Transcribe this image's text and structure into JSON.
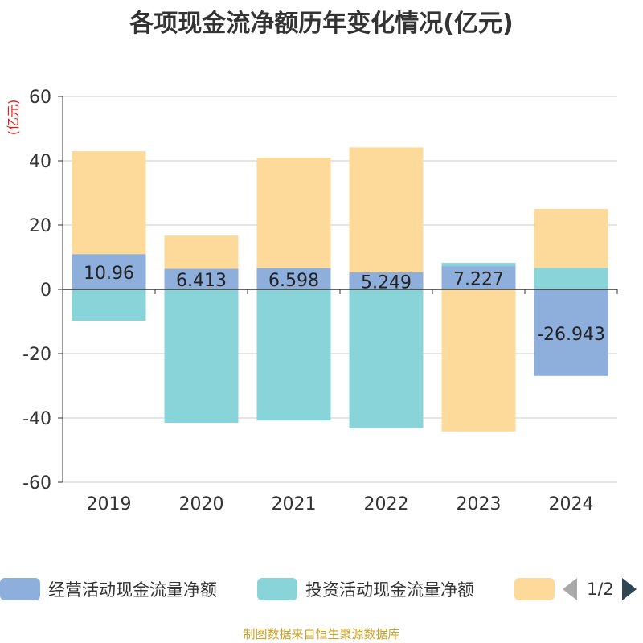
{
  "chart_data": {
    "type": "bar",
    "stacked": true,
    "title": "各项现金流净额历年变化情况(亿元)",
    "ylabel": "(亿元)",
    "categories": [
      "2019",
      "2020",
      "2021",
      "2022",
      "2023",
      "2024"
    ],
    "ylim": [
      -60,
      60
    ],
    "yticks": [
      60,
      40,
      20,
      0,
      -20,
      -40,
      -60
    ],
    "grid": true,
    "series": [
      {
        "name": "经营活动现金流量净额",
        "color": "#8eaedc",
        "values": [
          10.96,
          6.413,
          6.598,
          5.249,
          7.227,
          -26.943
        ],
        "labels": [
          "10.96",
          "6.413",
          "6.598",
          "5.249",
          "7.227",
          "-26.943"
        ]
      },
      {
        "name": "投资活动现金流量净额",
        "color": "#88d4d8",
        "values": [
          -9.8,
          -41.5,
          -40.8,
          -43.2,
          1.0,
          6.7
        ]
      },
      {
        "name": "",
        "color": "#fdd99a",
        "values": [
          32.0,
          10.3,
          34.4,
          38.9,
          -44.2,
          18.3
        ]
      }
    ]
  },
  "legend": {
    "page_label": "1/2"
  },
  "source_note": "制图数据来自恒生聚源数据库"
}
